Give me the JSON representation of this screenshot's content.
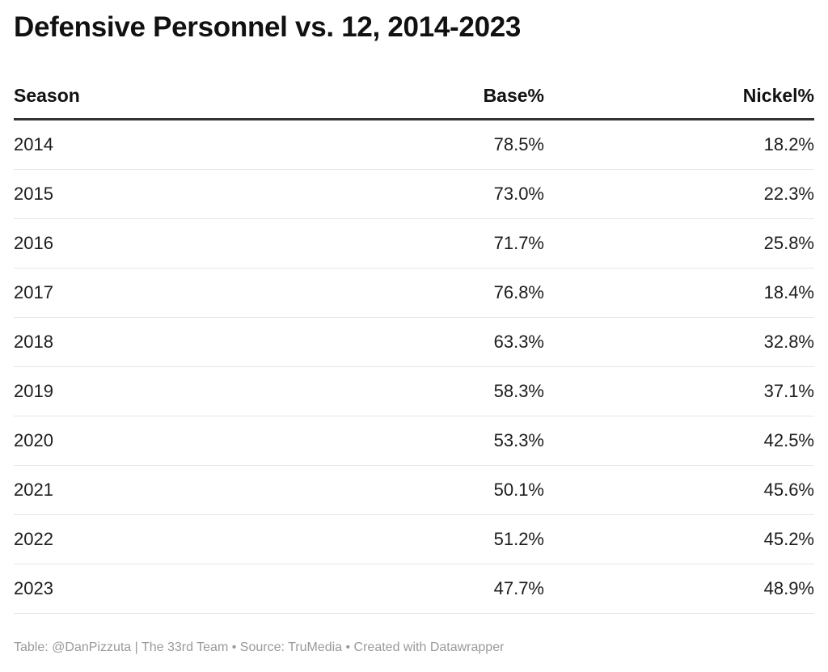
{
  "chart_data": {
    "type": "table",
    "title": "Defensive Personnel vs. 12, 2014-2023",
    "columns": [
      "Season",
      "Base%",
      "Nickel%"
    ],
    "rows": [
      [
        "2014",
        "78.5%",
        "18.2%"
      ],
      [
        "2015",
        "73.0%",
        "22.3%"
      ],
      [
        "2016",
        "71.7%",
        "25.8%"
      ],
      [
        "2017",
        "76.8%",
        "18.4%"
      ],
      [
        "2018",
        "63.3%",
        "32.8%"
      ],
      [
        "2019",
        "58.3%",
        "37.1%"
      ],
      [
        "2020",
        "53.3%",
        "42.5%"
      ],
      [
        "2021",
        "50.1%",
        "45.6%"
      ],
      [
        "2022",
        "51.2%",
        "45.2%"
      ],
      [
        "2023",
        "47.7%",
        "48.9%"
      ]
    ],
    "footer": "Table: @DanPizzuta | The 33rd Team • Source: TruMedia • Created with Datawrapper"
  }
}
